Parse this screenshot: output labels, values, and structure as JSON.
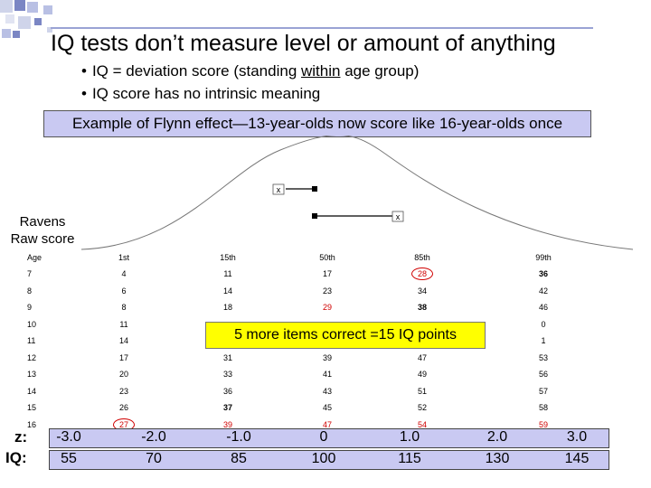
{
  "title": "IQ tests don’t measure level or amount of anything",
  "bullets": {
    "b1_pre": "IQ = deviation score (standing ",
    "b1_underlined": "within",
    "b1_post": " age group)",
    "b2": "IQ score has no intrinsic meaning",
    "bullet_glyph": "•"
  },
  "banner": "Example of Flynn effect—13-year-olds now score like 16-year-olds once",
  "curve_markers": {
    "upper": "x",
    "lower": "x"
  },
  "ravens_label": {
    "line1": "Ravens",
    "line2": "Raw score"
  },
  "table": {
    "headers": [
      "Age",
      "1st",
      "15th",
      "50th",
      "85th",
      "99th"
    ],
    "rows": [
      [
        "7",
        "4",
        "11",
        "17",
        "28",
        "36"
      ],
      [
        "8",
        "6",
        "14",
        "23",
        "34",
        "42"
      ],
      [
        "9",
        "8",
        "18",
        "29",
        "38",
        "46"
      ],
      [
        "10",
        "11",
        "",
        "",
        "",
        "0"
      ],
      [
        "11",
        "14",
        "",
        "",
        "",
        "1"
      ],
      [
        "12",
        "17",
        "31",
        "39",
        "47",
        "53"
      ],
      [
        "13",
        "20",
        "33",
        "41",
        "49",
        "56"
      ],
      [
        "14",
        "23",
        "36",
        "43",
        "51",
        "57"
      ],
      [
        "15",
        "26",
        "37",
        "45",
        "52",
        "58"
      ],
      [
        "16",
        "27",
        "39",
        "47",
        "54",
        "59"
      ]
    ]
  },
  "callout": "5 more items correct =15 IQ points",
  "z_label": "z:",
  "iq_label": "IQ:",
  "z_values": [
    "-3.0",
    "-2.0",
    "-1.0",
    "0",
    "1.0",
    "2.0",
    "3.0"
  ],
  "iq_values": [
    "55",
    "70",
    "85",
    "100",
    "115",
    "130",
    "145"
  ],
  "colors": {
    "band": "#c9c9f2",
    "callout": "#ffff00",
    "highlight": "#d00000"
  }
}
